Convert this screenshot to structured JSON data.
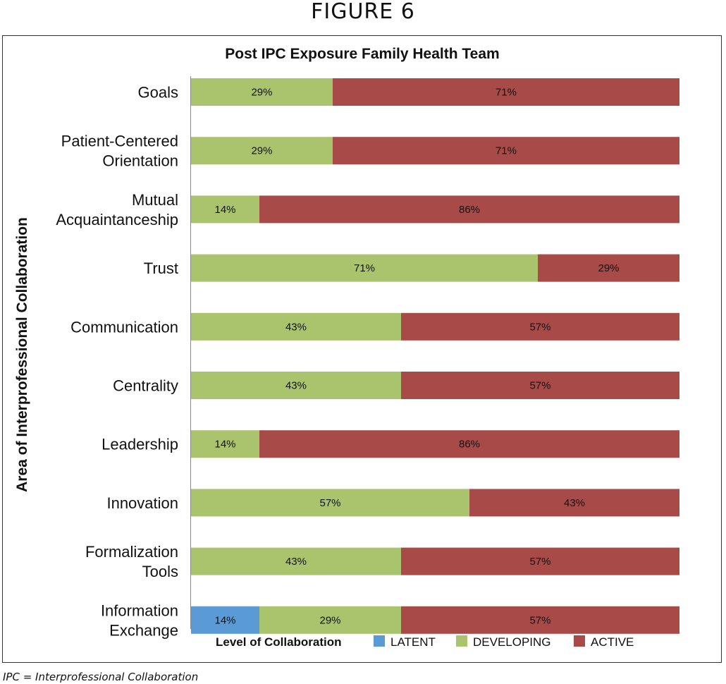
{
  "figure_label": "FIGURE 6",
  "footnote": "IPC = Interprofessional Collaboration",
  "chart_data": {
    "type": "bar",
    "orientation": "horizontal",
    "stacked": true,
    "title": "Post IPC Exposure Family Health Team",
    "ylabel": "Area of Interprofessional Collaboration",
    "xlabel": "",
    "legend_title": "Level of Collaboration",
    "legend_position": "bottom",
    "categories": [
      [
        "Goals"
      ],
      [
        "Patient-Centered",
        "Orientation"
      ],
      [
        "Mutual",
        "Acquaintanceship"
      ],
      [
        "Trust"
      ],
      [
        "Communication"
      ],
      [
        "Centrality"
      ],
      [
        "Leadership"
      ],
      [
        "Innovation"
      ],
      [
        "Formalization",
        "Tools"
      ],
      [
        "Information",
        "Exchange"
      ]
    ],
    "series": [
      {
        "name": "LATENT",
        "color": "#5b9bd5",
        "values": [
          0,
          0,
          0,
          0,
          0,
          0,
          0,
          0,
          0,
          14
        ],
        "labels": [
          "",
          "",
          "",
          "",
          "",
          "",
          "",
          "",
          "",
          "14%"
        ]
      },
      {
        "name": "DEVELOPING",
        "color": "#a9c46c",
        "values": [
          29,
          29,
          14,
          71,
          43,
          43,
          14,
          57,
          43,
          29
        ],
        "labels": [
          "29%",
          "29%",
          "14%",
          "71%",
          "43%",
          "43%",
          "14%",
          "57%",
          "43%",
          "29%"
        ]
      },
      {
        "name": "ACTIVE",
        "color": "#a84a47",
        "values": [
          71,
          71,
          86,
          29,
          57,
          57,
          86,
          43,
          57,
          57
        ],
        "labels": [
          "71%",
          "71%",
          "86%",
          "29%",
          "57%",
          "57%",
          "86%",
          "43%",
          "57%",
          "57%"
        ]
      }
    ],
    "xlim": [
      0,
      100
    ],
    "grid": false
  }
}
